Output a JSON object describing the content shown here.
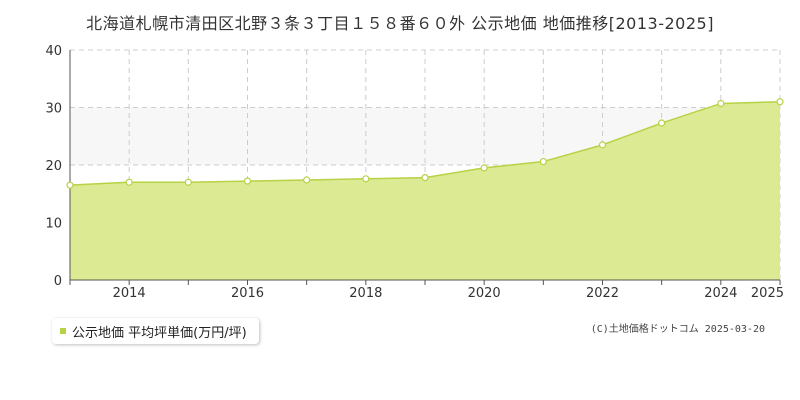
{
  "chart_data": {
    "type": "area",
    "title": "北海道札幌市清田区北野３条３丁目１５８番６０外 公示地価 地価推移[2013-2025]",
    "x": [
      2013,
      2014,
      2015,
      2016,
      2017,
      2018,
      2019,
      2020,
      2021,
      2022,
      2023,
      2024,
      2025
    ],
    "x_tick_labels": [
      "2014",
      "2016",
      "2018",
      "2020",
      "2022",
      "2024",
      "2025"
    ],
    "x_tick_values": [
      2014,
      2016,
      2018,
      2020,
      2022,
      2024,
      2025
    ],
    "series": [
      {
        "name": "公示地価 平均坪単価(万円/坪)",
        "values": [
          16.5,
          17.0,
          17.0,
          17.2,
          17.4,
          17.6,
          17.8,
          19.5,
          20.6,
          23.5,
          27.3,
          30.7,
          31.0
        ]
      }
    ],
    "xlim": [
      2013,
      2025
    ],
    "ylim": [
      0,
      40
    ],
    "y_ticks": [
      0,
      10,
      20,
      30,
      40
    ],
    "grid": true,
    "legend_position": "bottom-left",
    "colors": {
      "fill": "#dcea93",
      "line": "#b6d245",
      "marker_fill": "#ffffff",
      "marker_stroke": "#b6d245",
      "grid": "#cccccc",
      "band": "#f7f7f7",
      "axis": "#555555",
      "legend_swatch": "#b6d245"
    }
  },
  "legend": {
    "label": "公示地価 平均坪単価(万円/坪)"
  },
  "credit": "(C)土地価格ドットコム 2025-03-20"
}
